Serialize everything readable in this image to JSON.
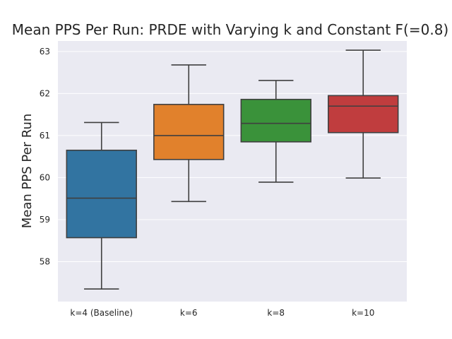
{
  "chart_data": {
    "type": "box",
    "title": "Mean PPS Per Run: PRDE with Varying k and Constant F(=0.8)",
    "xlabel": "",
    "ylabel": "Mean PPS Per Run",
    "categories": [
      "k=4 (Baseline)",
      "k=6",
      "k=8",
      "k=10"
    ],
    "boxes": [
      {
        "name": "k=4 (Baseline)",
        "whisker_low": 57.35,
        "q1": 58.57,
        "median": 59.51,
        "q3": 60.65,
        "whisker_high": 61.31,
        "color": "#3274a1"
      },
      {
        "name": "k=6",
        "whisker_low": 59.43,
        "q1": 60.43,
        "median": 61.0,
        "q3": 61.74,
        "whisker_high": 62.68,
        "color": "#e1812c"
      },
      {
        "name": "k=8",
        "whisker_low": 59.89,
        "q1": 60.85,
        "median": 61.29,
        "q3": 61.86,
        "whisker_high": 62.31,
        "color": "#3a923a"
      },
      {
        "name": "k=10",
        "whisker_low": 59.99,
        "q1": 61.07,
        "median": 61.7,
        "q3": 61.95,
        "whisker_high": 63.03,
        "color": "#c03d3e"
      }
    ],
    "yticks": [
      58,
      59,
      60,
      61,
      62,
      63
    ],
    "ylim": [
      57.05,
      63.25
    ],
    "grid": true,
    "background": "#eaeaf2",
    "line_color": "#3f3f3f"
  }
}
